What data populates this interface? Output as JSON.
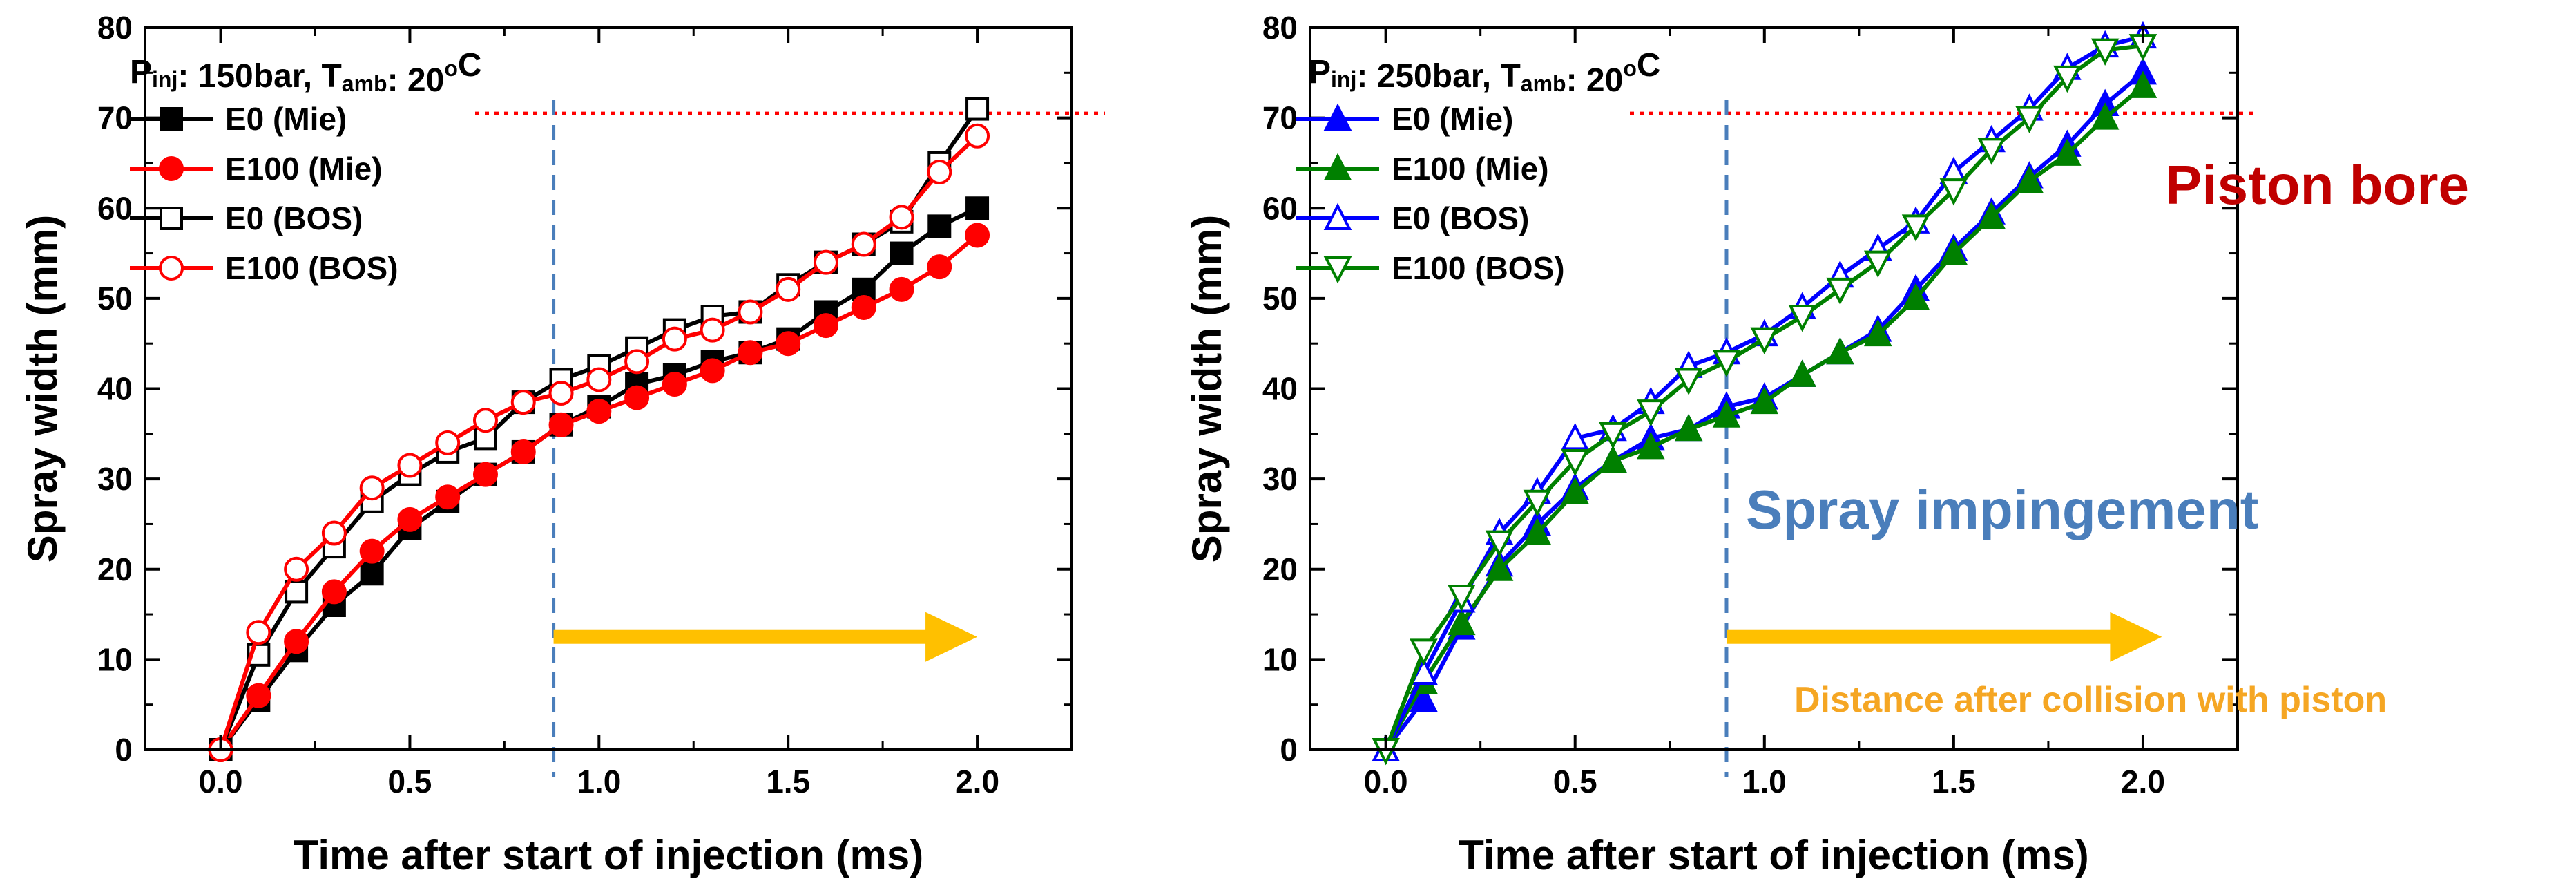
{
  "chart_data": [
    {
      "type": "line",
      "condition": {
        "p_main": "P",
        "p_sub": "inj",
        "p_val": ": 150bar, ",
        "t_main": "T",
        "t_sub": "amb",
        "t_val": ": 20",
        "deg": "o",
        "unit": "C"
      },
      "xlabel": "Time after start of injection (ms)",
      "ylabel": "Spray width (mm)",
      "xlim": [
        -0.2,
        2.25
      ],
      "ylim": [
        0,
        80
      ],
      "xticks": [
        0.0,
        0.5,
        1.0,
        1.5,
        2.0
      ],
      "xtick_labels": [
        "0.0",
        "0.5",
        "1.0",
        "1.5",
        "2.0"
      ],
      "yticks": [
        0,
        10,
        20,
        30,
        40,
        50,
        60,
        70,
        80
      ],
      "ytick_labels": [
        "0",
        "10",
        "20",
        "30",
        "40",
        "50",
        "60",
        "70",
        "80"
      ],
      "ref_hline": 70.5,
      "ref_vline": 0.88,
      "arrow": {
        "x_from": 0.88,
        "x_to": 2.0,
        "y": 12.5
      },
      "series": [
        {
          "name": "E0 (Mie)",
          "color": "#000000",
          "marker": "square",
          "filled": true,
          "x": [
            0,
            0.1,
            0.2,
            0.3,
            0.4,
            0.5,
            0.6,
            0.7,
            0.8,
            0.9,
            1.0,
            1.1,
            1.2,
            1.3,
            1.4,
            1.5,
            1.6,
            1.7,
            1.8,
            1.9,
            2.0
          ],
          "y": [
            0,
            5.5,
            11,
            16,
            19.5,
            24.5,
            27.5,
            30.5,
            33,
            36,
            38,
            40.5,
            41.5,
            43,
            44,
            45.5,
            48.5,
            51,
            55,
            58,
            60
          ]
        },
        {
          "name": "E100 (Mie)",
          "color": "#ff0000",
          "marker": "circle",
          "filled": true,
          "x": [
            0,
            0.1,
            0.2,
            0.3,
            0.4,
            0.5,
            0.6,
            0.7,
            0.8,
            0.9,
            1.0,
            1.1,
            1.2,
            1.3,
            1.4,
            1.5,
            1.6,
            1.7,
            1.8,
            1.9,
            2.0
          ],
          "y": [
            0,
            6,
            12,
            17.5,
            22,
            25.5,
            28,
            30.5,
            33,
            36,
            37.5,
            39,
            40.5,
            42,
            44,
            45,
            47,
            49,
            51,
            53.5,
            57
          ]
        },
        {
          "name": "E0 (BOS)",
          "color": "#000000",
          "marker": "square",
          "filled": false,
          "x": [
            0,
            0.1,
            0.2,
            0.3,
            0.4,
            0.5,
            0.6,
            0.7,
            0.8,
            0.9,
            1.0,
            1.1,
            1.2,
            1.3,
            1.4,
            1.5,
            1.6,
            1.7,
            1.8,
            1.9,
            2.0
          ],
          "y": [
            0,
            10.5,
            17.5,
            22.5,
            27.5,
            30.5,
            33,
            34.5,
            38.5,
            41,
            42.5,
            44.5,
            46.5,
            48,
            48.5,
            51.5,
            54,
            56,
            58.5,
            65,
            71
          ]
        },
        {
          "name": "E100 (BOS)",
          "color": "#ff0000",
          "marker": "circle",
          "filled": false,
          "x": [
            0,
            0.1,
            0.2,
            0.3,
            0.4,
            0.5,
            0.6,
            0.7,
            0.8,
            0.9,
            1.0,
            1.1,
            1.2,
            1.3,
            1.4,
            1.5,
            1.6,
            1.7,
            1.8,
            1.9,
            2.0
          ],
          "y": [
            0,
            13,
            20,
            24,
            29,
            31.5,
            34,
            36.5,
            38.5,
            39.5,
            41,
            43,
            45.5,
            46.5,
            48.5,
            51,
            54,
            56,
            59,
            64,
            68
          ]
        }
      ]
    },
    {
      "type": "line",
      "condition": {
        "p_main": "P",
        "p_sub": "inj",
        "p_val": ": 250bar, ",
        "t_main": "T",
        "t_sub": "amb",
        "t_val": ": 20",
        "deg": "o",
        "unit": "C"
      },
      "xlabel": "Time after start of injection (ms)",
      "ylabel": "Spray width (mm)",
      "xlim": [
        -0.2,
        2.25
      ],
      "ylim": [
        0,
        80
      ],
      "xticks": [
        0.0,
        0.5,
        1.0,
        1.5,
        2.0
      ],
      "xtick_labels": [
        "0.0",
        "0.5",
        "1.0",
        "1.5",
        "2.0"
      ],
      "yticks": [
        0,
        10,
        20,
        30,
        40,
        50,
        60,
        70,
        80
      ],
      "ytick_labels": [
        "0",
        "10",
        "20",
        "30",
        "40",
        "50",
        "60",
        "70",
        "80"
      ],
      "ref_hline": 70.5,
      "ref_vline": 0.9,
      "arrow": {
        "x_from": 0.9,
        "x_to": 2.05,
        "y": 12.5
      },
      "series": [
        {
          "name": "E0 (Mie)",
          "color": "#0000ff",
          "marker": "triangle-up",
          "filled": true,
          "x": [
            0,
            0.1,
            0.2,
            0.3,
            0.4,
            0.5,
            0.6,
            0.7,
            0.8,
            0.9,
            1.0,
            1.1,
            1.2,
            1.3,
            1.4,
            1.5,
            1.6,
            1.7,
            1.8,
            1.9,
            2.0
          ],
          "y": [
            0,
            5.5,
            13.5,
            20.5,
            25,
            29,
            32,
            34.5,
            35.5,
            38,
            39,
            41.5,
            44,
            46.5,
            51,
            55.5,
            59.5,
            63.5,
            67,
            71.5,
            75
          ]
        },
        {
          "name": "E100 (Mie)",
          "color": "#008000",
          "marker": "triangle-up",
          "filled": true,
          "x": [
            0,
            0.1,
            0.2,
            0.3,
            0.4,
            0.5,
            0.6,
            0.7,
            0.8,
            0.9,
            1.0,
            1.1,
            1.2,
            1.3,
            1.4,
            1.5,
            1.6,
            1.7,
            1.8,
            1.9,
            2.0
          ],
          "y": [
            0,
            7.5,
            14,
            20,
            24,
            28.5,
            32,
            33.5,
            35.5,
            37,
            38.5,
            41.5,
            44,
            46,
            50,
            55,
            59,
            63,
            66,
            70,
            73.5
          ]
        },
        {
          "name": "E0 (BOS)",
          "color": "#0000ff",
          "marker": "triangle-up",
          "filled": false,
          "x": [
            0,
            0.1,
            0.2,
            0.3,
            0.4,
            0.5,
            0.6,
            0.7,
            0.8,
            0.9,
            1.0,
            1.1,
            1.2,
            1.3,
            1.4,
            1.5,
            1.6,
            1.7,
            1.8,
            1.9,
            2.0
          ],
          "y": [
            0,
            8.5,
            16.5,
            24,
            28.5,
            34.5,
            35.5,
            38.5,
            42.5,
            44,
            46,
            49,
            52.5,
            55.5,
            58.5,
            64,
            67.5,
            71,
            75.5,
            78,
            79
          ]
        },
        {
          "name": "E100 (BOS)",
          "color": "#008000",
          "marker": "triangle-down",
          "filled": false,
          "x": [
            0,
            0.1,
            0.2,
            0.3,
            0.4,
            0.5,
            0.6,
            0.7,
            0.8,
            0.9,
            1.0,
            1.1,
            1.2,
            1.3,
            1.4,
            1.5,
            1.6,
            1.7,
            1.8,
            1.9,
            2.0
          ],
          "y": [
            0,
            11,
            17,
            23,
            27.5,
            32,
            35,
            37.5,
            41,
            43,
            45.5,
            48,
            51,
            54,
            58,
            62,
            66.5,
            70,
            74.5,
            77.5,
            78
          ]
        }
      ]
    }
  ],
  "annotations": {
    "piston_bore": "Piston bore",
    "piston_bore_color": "#c00000",
    "spray_impingement": "Spray impingement",
    "spray_impingement_color": "#4a7ebb",
    "distance": "Distance after collision with piston",
    "distance_color": "#f5a623",
    "arrow_color": "#ffc000",
    "hline_color": "#ff0000",
    "vline_color": "#4a7ebb"
  }
}
